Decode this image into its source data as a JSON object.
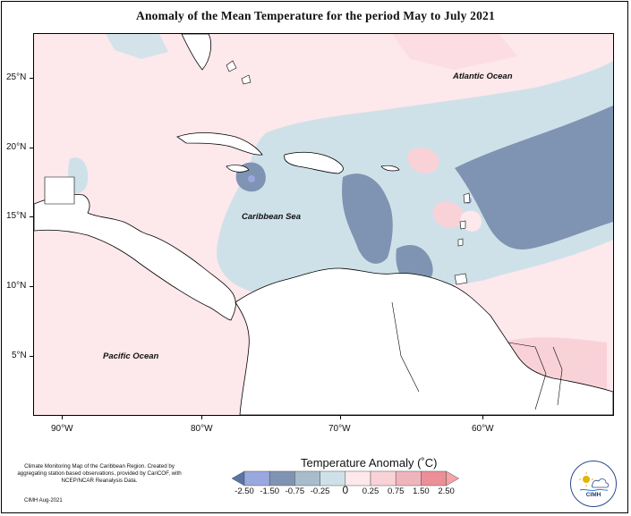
{
  "title": "Anomaly of the Mean Temperature for the period May to July 2021",
  "map": {
    "lat_labels": [
      "25°N",
      "20°N",
      "15°N",
      "10°N",
      "5°N"
    ],
    "lon_labels": [
      "90°W",
      "80°W",
      "70°W",
      "60°W"
    ],
    "places": {
      "atlantic": "Atlantic Ocean",
      "caribbean": "Caribbean Sea",
      "pacific": "Pacific Ocean"
    }
  },
  "legend": {
    "title": "Temperature Anomaly (˚C)",
    "labels": [
      "-2.50",
      "-1.50",
      "-0.75",
      "-0.25",
      "0",
      "0.25",
      "0.75",
      "1.50",
      "2.50"
    ],
    "colors": [
      "#5a74a6",
      "#9aa8e0",
      "#7f94b3",
      "#a8bccb",
      "#cfe1e8",
      "#fde8ec",
      "#f9d2d8",
      "#f0b5bc",
      "#ec8f96",
      "#f4a3a6"
    ]
  },
  "credit": {
    "text": "Climate Monitoring Map of the Caribbean Region. Created by aggregating station based observations, provided by CariCOF, with NCEP/NCAR Reanalysis Data.",
    "date": "CIMH Aug-2021"
  },
  "logo": {
    "text": "CIMH"
  }
}
